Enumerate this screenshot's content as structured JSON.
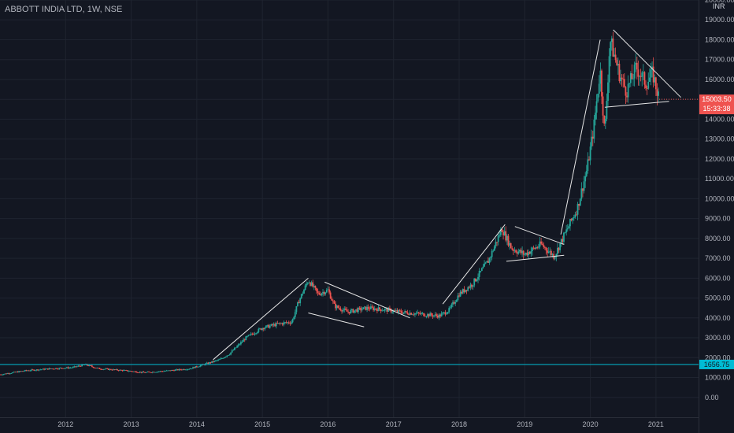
{
  "header": {
    "title": "ABBOTT INDIA LTD, 1W, NSE",
    "currency": "INR"
  },
  "colors": {
    "background": "#131722",
    "up": "#26a69a",
    "down": "#ef5350",
    "grid": "#1f2430",
    "trendline": "#e6e6e6",
    "hline": "#00bcd4"
  },
  "chart_data": {
    "type": "candlestick",
    "ylim": [
      -1000,
      20000
    ],
    "yticks": [
      0,
      1000,
      2000,
      3000,
      4000,
      5000,
      6000,
      7000,
      8000,
      9000,
      10000,
      11000,
      12000,
      13000,
      14000,
      15000,
      16000,
      17000,
      18000,
      19000,
      20000
    ],
    "yticks_labels": [
      "0.00",
      "1000.00",
      "2000.00",
      "3000.00",
      "4000.00",
      "5000.00",
      "6000.00",
      "7000.00",
      "8000.00",
      "9000.00",
      "10000.00",
      "11000.00",
      "12000.00",
      "13000.00",
      "14000.00",
      "15000.00",
      "16000.00",
      "17000.00",
      "18000.00",
      "19000.00",
      "20000.00"
    ],
    "xlim": [
      2011.0,
      2021.65
    ],
    "xticks": [
      2012,
      2013,
      2014,
      2015,
      2016,
      2017,
      2018,
      2019,
      2020,
      2021
    ],
    "xticks_labels": [
      "2012",
      "2013",
      "2014",
      "2015",
      "2016",
      "2017",
      "2018",
      "2019",
      "2020",
      "2021"
    ],
    "price_path": [
      [
        2011.0,
        1150
      ],
      [
        2011.4,
        1350
      ],
      [
        2011.8,
        1450
      ],
      [
        2012.1,
        1500
      ],
      [
        2012.3,
        1650
      ],
      [
        2012.5,
        1450
      ],
      [
        2012.9,
        1350
      ],
      [
        2013.2,
        1250
      ],
      [
        2013.6,
        1350
      ],
      [
        2013.9,
        1450
      ],
      [
        2014.1,
        1650
      ],
      [
        2014.35,
        1900
      ],
      [
        2014.5,
        2200
      ],
      [
        2014.75,
        3000
      ],
      [
        2015.0,
        3500
      ],
      [
        2015.25,
        3700
      ],
      [
        2015.45,
        3800
      ],
      [
        2015.55,
        4800
      ],
      [
        2015.7,
        5900
      ],
      [
        2015.85,
        5200
      ],
      [
        2016.0,
        5400
      ],
      [
        2016.1,
        4600
      ],
      [
        2016.3,
        4300
      ],
      [
        2016.6,
        4500
      ],
      [
        2016.9,
        4400
      ],
      [
        2017.1,
        4300
      ],
      [
        2017.4,
        4200
      ],
      [
        2017.7,
        4100
      ],
      [
        2017.85,
        4400
      ],
      [
        2018.0,
        5200
      ],
      [
        2018.2,
        5700
      ],
      [
        2018.45,
        6900
      ],
      [
        2018.65,
        8500
      ],
      [
        2018.8,
        7500
      ],
      [
        2019.0,
        7200
      ],
      [
        2019.25,
        7700
      ],
      [
        2019.45,
        7100
      ],
      [
        2019.55,
        7800
      ],
      [
        2019.8,
        9500
      ],
      [
        2019.95,
        11500
      ],
      [
        2020.05,
        13500
      ],
      [
        2020.15,
        16500
      ],
      [
        2020.22,
        13200
      ],
      [
        2020.3,
        18000
      ],
      [
        2020.45,
        16200
      ],
      [
        2020.55,
        15400
      ],
      [
        2020.7,
        16600
      ],
      [
        2020.85,
        15800
      ],
      [
        2020.95,
        16300
      ],
      [
        2021.05,
        15003
      ]
    ],
    "trendlines": [
      [
        2014.25,
        1900,
        2015.7,
        6000
      ],
      [
        2015.7,
        4250,
        2016.55,
        3550
      ],
      [
        2015.95,
        5800,
        2017.25,
        4000
      ],
      [
        2017.75,
        4700,
        2018.7,
        8700
      ],
      [
        2018.72,
        6850,
        2019.6,
        7150
      ],
      [
        2018.85,
        8600,
        2019.6,
        7700
      ],
      [
        2019.55,
        8200,
        2020.15,
        18000
      ],
      [
        2020.22,
        14600,
        2021.2,
        14900
      ],
      [
        2020.35,
        18500,
        2021.38,
        15100
      ]
    ],
    "hline": {
      "value": 1656.75,
      "label": "1656.75"
    },
    "last_price": {
      "value": 15003.5,
      "label": "15003.50",
      "timer": "15:33:38"
    }
  }
}
